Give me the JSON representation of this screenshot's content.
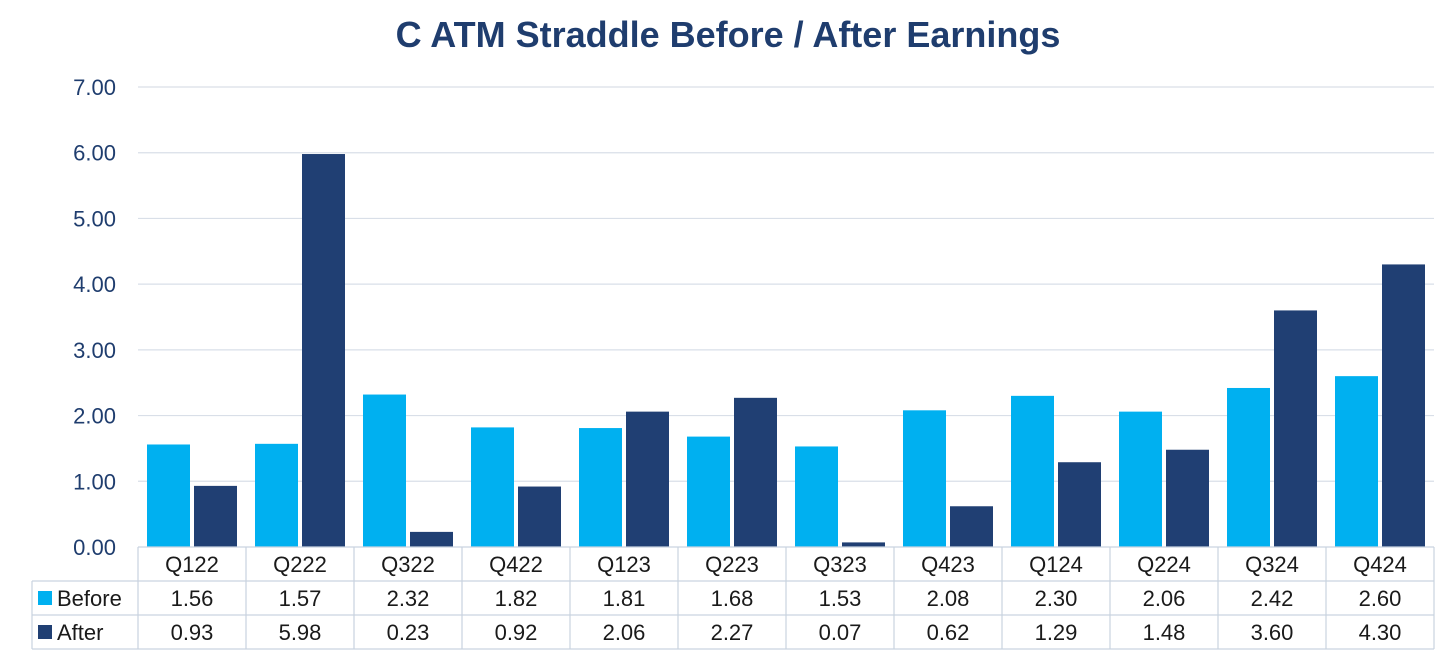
{
  "chart_data": {
    "type": "bar",
    "title": "C ATM Straddle Before / After Earnings",
    "categories": [
      "Q122",
      "Q222",
      "Q322",
      "Q422",
      "Q123",
      "Q223",
      "Q323",
      "Q423",
      "Q124",
      "Q224",
      "Q324",
      "Q424"
    ],
    "series": [
      {
        "name": "Before",
        "color": "#00b0f0",
        "values": [
          1.56,
          1.57,
          2.32,
          1.82,
          1.81,
          1.68,
          1.53,
          2.08,
          2.3,
          2.06,
          2.42,
          2.6
        ],
        "labels": [
          "1.56",
          "1.57",
          "2.32",
          "1.82",
          "1.81",
          "1.68",
          "1.53",
          "2.08",
          "2.30",
          "2.06",
          "2.42",
          "2.60"
        ]
      },
      {
        "name": "After",
        "color": "#203f73",
        "values": [
          0.93,
          5.98,
          0.23,
          0.92,
          2.06,
          2.27,
          0.07,
          0.62,
          1.29,
          1.48,
          3.6,
          4.3
        ],
        "labels": [
          "0.93",
          "5.98",
          "0.23",
          "0.92",
          "2.06",
          "2.27",
          "0.07",
          "0.62",
          "1.29",
          "1.48",
          "3.60",
          "4.30"
        ]
      }
    ],
    "ylim": [
      0,
      7
    ],
    "yticks": [
      "0.00",
      "1.00",
      "2.00",
      "3.00",
      "4.00",
      "5.00",
      "6.00",
      "7.00"
    ],
    "grid": true,
    "data_table": true,
    "legend": "data-table"
  }
}
